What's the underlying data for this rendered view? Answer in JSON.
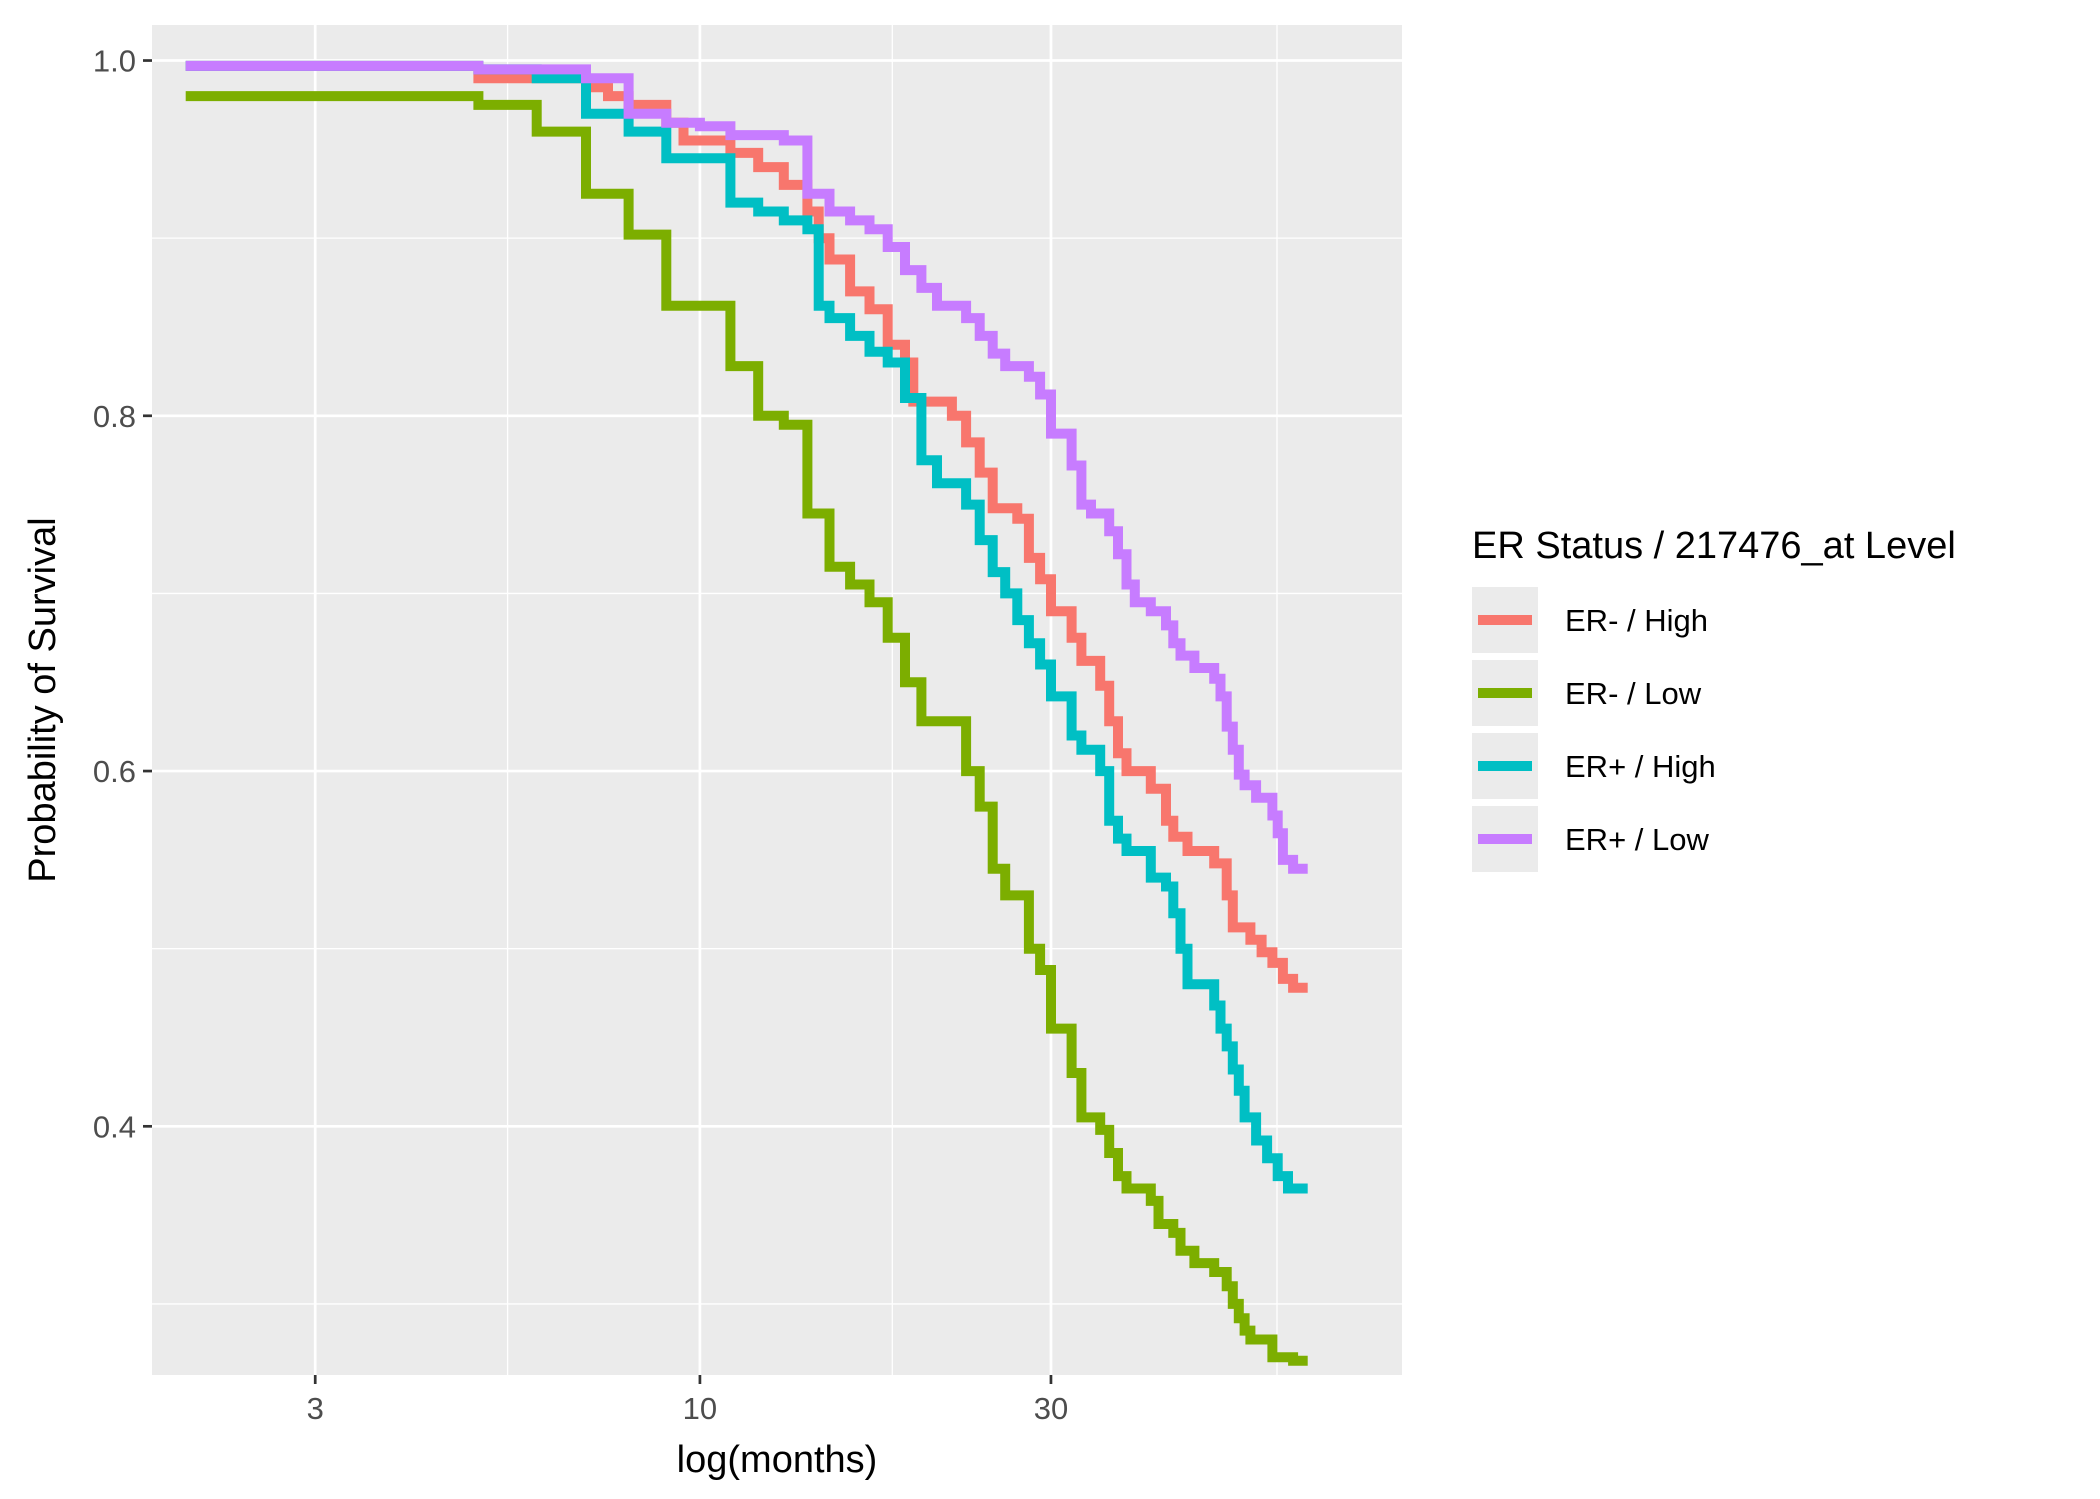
{
  "chart_data": {
    "type": "line",
    "step": true,
    "xlabel": "log(months)",
    "ylabel": "Probability of Survival",
    "x_scale": "log10",
    "xlim": [
      1.8,
      90
    ],
    "ylim": [
      0.26,
      1.02
    ],
    "x_ticks": [
      {
        "value": 3,
        "label": "3"
      },
      {
        "value": 10,
        "label": "10"
      },
      {
        "value": 30,
        "label": "30"
      }
    ],
    "y_ticks": [
      {
        "value": 0.4,
        "label": "0.4"
      },
      {
        "value": 0.6,
        "label": "0.6"
      },
      {
        "value": 0.8,
        "label": "0.8"
      },
      {
        "value": 1.0,
        "label": "1.0"
      }
    ],
    "grid": true,
    "background": "#ebebeb",
    "legend": {
      "title": "ER Status / 217476_at Level",
      "position": "right"
    },
    "series": [
      {
        "name": "ER- / High",
        "color": "#F8766D",
        "points": [
          [
            2.0,
            0.997
          ],
          [
            5.0,
            0.99
          ],
          [
            7.0,
            0.985
          ],
          [
            7.5,
            0.98
          ],
          [
            8.0,
            0.975
          ],
          [
            9.0,
            0.965
          ],
          [
            9.5,
            0.955
          ],
          [
            11.0,
            0.948
          ],
          [
            12.0,
            0.94
          ],
          [
            13.0,
            0.93
          ],
          [
            14.0,
            0.915
          ],
          [
            14.5,
            0.9
          ],
          [
            15.0,
            0.888
          ],
          [
            16.0,
            0.87
          ],
          [
            17.0,
            0.86
          ],
          [
            18.0,
            0.84
          ],
          [
            19.0,
            0.83
          ],
          [
            19.5,
            0.808
          ],
          [
            22.0,
            0.8
          ],
          [
            23.0,
            0.785
          ],
          [
            24.0,
            0.768
          ],
          [
            25.0,
            0.748
          ],
          [
            27.0,
            0.742
          ],
          [
            28.0,
            0.72
          ],
          [
            29.0,
            0.708
          ],
          [
            30.0,
            0.69
          ],
          [
            32.0,
            0.675
          ],
          [
            33.0,
            0.662
          ],
          [
            35.0,
            0.648
          ],
          [
            36.0,
            0.628
          ],
          [
            37.0,
            0.61
          ],
          [
            38.0,
            0.6
          ],
          [
            41.0,
            0.59
          ],
          [
            43.0,
            0.572
          ],
          [
            44.0,
            0.563
          ],
          [
            46.0,
            0.555
          ],
          [
            50.0,
            0.548
          ],
          [
            52.0,
            0.53
          ],
          [
            53.0,
            0.512
          ],
          [
            56.0,
            0.505
          ],
          [
            58.0,
            0.498
          ],
          [
            60.0,
            0.492
          ],
          [
            62.0,
            0.483
          ],
          [
            64.0,
            0.478
          ],
          [
            67.0,
            0.478
          ]
        ]
      },
      {
        "name": "ER- / Low",
        "color": "#7CAE00",
        "points": [
          [
            2.0,
            0.98
          ],
          [
            5.0,
            0.975
          ],
          [
            6.0,
            0.96
          ],
          [
            7.0,
            0.925
          ],
          [
            8.0,
            0.902
          ],
          [
            9.0,
            0.862
          ],
          [
            11.0,
            0.828
          ],
          [
            12.0,
            0.8
          ],
          [
            13.0,
            0.795
          ],
          [
            14.0,
            0.745
          ],
          [
            15.0,
            0.715
          ],
          [
            16.0,
            0.705
          ],
          [
            17.0,
            0.695
          ],
          [
            18.0,
            0.675
          ],
          [
            19.0,
            0.65
          ],
          [
            20.0,
            0.628
          ],
          [
            23.0,
            0.6
          ],
          [
            24.0,
            0.58
          ],
          [
            25.0,
            0.545
          ],
          [
            26.0,
            0.53
          ],
          [
            28.0,
            0.5
          ],
          [
            29.0,
            0.488
          ],
          [
            30.0,
            0.455
          ],
          [
            32.0,
            0.43
          ],
          [
            33.0,
            0.405
          ],
          [
            35.0,
            0.398
          ],
          [
            36.0,
            0.385
          ],
          [
            37.0,
            0.372
          ],
          [
            38.0,
            0.365
          ],
          [
            41.0,
            0.358
          ],
          [
            42.0,
            0.345
          ],
          [
            44.0,
            0.34
          ],
          [
            45.0,
            0.33
          ],
          [
            47.0,
            0.323
          ],
          [
            50.0,
            0.318
          ],
          [
            52.0,
            0.31
          ],
          [
            53.0,
            0.3
          ],
          [
            54.0,
            0.292
          ],
          [
            55.0,
            0.285
          ],
          [
            56.0,
            0.28
          ],
          [
            60.0,
            0.27
          ],
          [
            64.0,
            0.268
          ],
          [
            67.0,
            0.268
          ]
        ]
      },
      {
        "name": "ER+ / High",
        "color": "#00BFC4",
        "points": [
          [
            2.0,
            0.997
          ],
          [
            5.0,
            0.995
          ],
          [
            6.0,
            0.99
          ],
          [
            7.0,
            0.97
          ],
          [
            8.0,
            0.96
          ],
          [
            9.0,
            0.945
          ],
          [
            11.0,
            0.92
          ],
          [
            12.0,
            0.915
          ],
          [
            13.0,
            0.91
          ],
          [
            14.0,
            0.905
          ],
          [
            14.5,
            0.862
          ],
          [
            15.0,
            0.855
          ],
          [
            16.0,
            0.845
          ],
          [
            17.0,
            0.836
          ],
          [
            18.0,
            0.83
          ],
          [
            19.0,
            0.81
          ],
          [
            20.0,
            0.775
          ],
          [
            21.0,
            0.762
          ],
          [
            23.0,
            0.75
          ],
          [
            24.0,
            0.73
          ],
          [
            25.0,
            0.712
          ],
          [
            26.0,
            0.7
          ],
          [
            27.0,
            0.685
          ],
          [
            28.0,
            0.672
          ],
          [
            29.0,
            0.66
          ],
          [
            30.0,
            0.642
          ],
          [
            32.0,
            0.62
          ],
          [
            33.0,
            0.612
          ],
          [
            35.0,
            0.6
          ],
          [
            36.0,
            0.572
          ],
          [
            37.0,
            0.562
          ],
          [
            38.0,
            0.555
          ],
          [
            41.0,
            0.54
          ],
          [
            43.0,
            0.535
          ],
          [
            44.0,
            0.52
          ],
          [
            45.0,
            0.5
          ],
          [
            46.0,
            0.48
          ],
          [
            50.0,
            0.468
          ],
          [
            51.0,
            0.455
          ],
          [
            52.0,
            0.445
          ],
          [
            53.0,
            0.432
          ],
          [
            54.0,
            0.42
          ],
          [
            55.0,
            0.405
          ],
          [
            57.0,
            0.392
          ],
          [
            59.0,
            0.382
          ],
          [
            61.0,
            0.372
          ],
          [
            63.0,
            0.365
          ],
          [
            67.0,
            0.365
          ]
        ]
      },
      {
        "name": "ER+ / Low",
        "color": "#C77CFF",
        "points": [
          [
            2.0,
            0.997
          ],
          [
            5.0,
            0.995
          ],
          [
            7.0,
            0.99
          ],
          [
            8.0,
            0.97
          ],
          [
            9.0,
            0.965
          ],
          [
            10.0,
            0.963
          ],
          [
            11.0,
            0.958
          ],
          [
            13.0,
            0.955
          ],
          [
            14.0,
            0.925
          ],
          [
            15.0,
            0.915
          ],
          [
            16.0,
            0.91
          ],
          [
            17.0,
            0.905
          ],
          [
            18.0,
            0.895
          ],
          [
            19.0,
            0.882
          ],
          [
            20.0,
            0.872
          ],
          [
            21.0,
            0.862
          ],
          [
            23.0,
            0.855
          ],
          [
            24.0,
            0.845
          ],
          [
            25.0,
            0.835
          ],
          [
            26.0,
            0.828
          ],
          [
            28.0,
            0.822
          ],
          [
            29.0,
            0.812
          ],
          [
            30.0,
            0.79
          ],
          [
            32.0,
            0.772
          ],
          [
            33.0,
            0.75
          ],
          [
            34.0,
            0.745
          ],
          [
            36.0,
            0.735
          ],
          [
            37.0,
            0.722
          ],
          [
            38.0,
            0.705
          ],
          [
            39.0,
            0.695
          ],
          [
            41.0,
            0.69
          ],
          [
            43.0,
            0.682
          ],
          [
            44.0,
            0.672
          ],
          [
            45.0,
            0.665
          ],
          [
            47.0,
            0.658
          ],
          [
            50.0,
            0.652
          ],
          [
            51.0,
            0.642
          ],
          [
            52.0,
            0.625
          ],
          [
            53.0,
            0.612
          ],
          [
            54.0,
            0.598
          ],
          [
            55.0,
            0.592
          ],
          [
            57.0,
            0.585
          ],
          [
            60.0,
            0.575
          ],
          [
            61.0,
            0.565
          ],
          [
            62.0,
            0.55
          ],
          [
            64.0,
            0.545
          ],
          [
            67.0,
            0.545
          ]
        ]
      }
    ]
  }
}
